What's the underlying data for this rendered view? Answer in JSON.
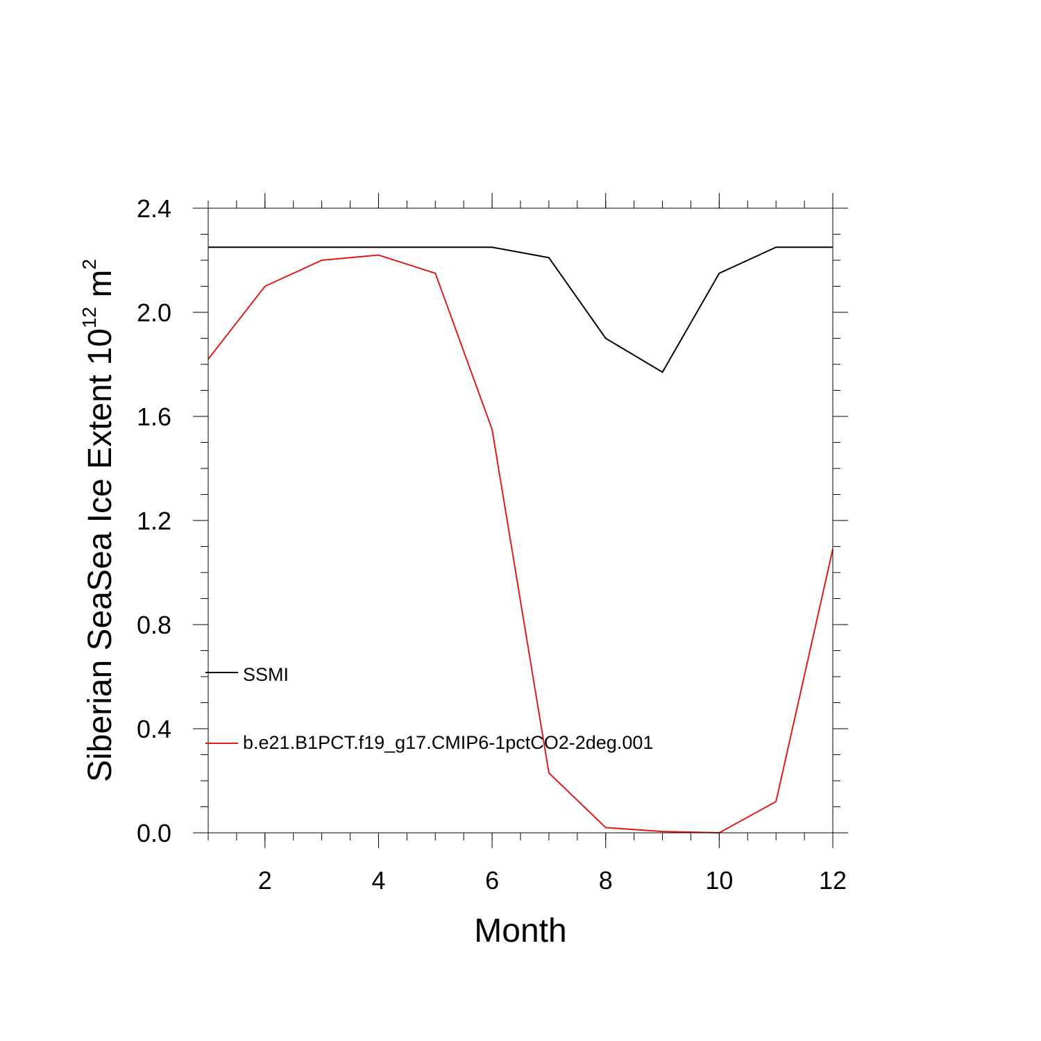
{
  "chart_data": {
    "type": "line",
    "title": "",
    "xlabel": "Month",
    "ylabel_main": "Siberian SeaSea Ice Extent 10",
    "ylabel_exp": "12",
    "ylabel_unit": " m",
    "ylabel_unit_exp": "2",
    "xlim": [
      1,
      12
    ],
    "ylim": [
      0,
      2.4
    ],
    "x_ticks": [
      2,
      4,
      6,
      8,
      10,
      12
    ],
    "x_tick_labels": [
      "2",
      "4",
      "6",
      "8",
      "10",
      "12"
    ],
    "y_ticks": [
      0,
      0.4,
      0.8,
      1.2,
      1.6,
      2.0,
      2.4
    ],
    "y_tick_labels": [
      "0.0",
      "0.4",
      "0.8",
      "1.2",
      "1.6",
      "2.0",
      "2.4"
    ],
    "grid": false,
    "legend_position": "lower-left",
    "x": [
      1,
      2,
      3,
      4,
      5,
      6,
      7,
      8,
      9,
      10,
      11,
      12
    ],
    "series": [
      {
        "name": "SSMI",
        "color": "#000000",
        "values": [
          2.25,
          2.25,
          2.25,
          2.25,
          2.25,
          2.25,
          2.21,
          1.9,
          1.77,
          2.15,
          2.25,
          2.25
        ]
      },
      {
        "name": "b.e21.B1PCT.f19_g17.CMIP6-1pctCO2-2deg.001",
        "color": "#e0191b",
        "values": [
          1.82,
          2.1,
          2.2,
          2.22,
          2.15,
          1.55,
          0.23,
          0.02,
          0.005,
          0.0,
          0.12,
          1.09
        ]
      }
    ]
  }
}
